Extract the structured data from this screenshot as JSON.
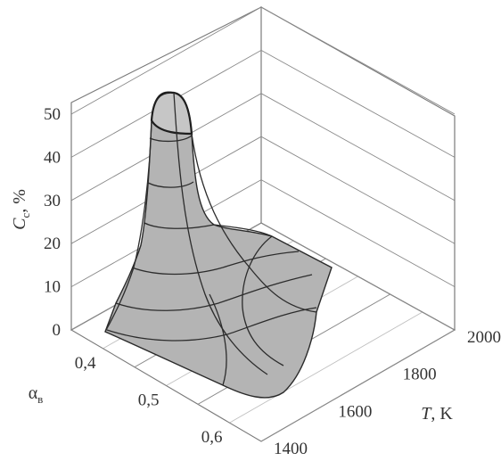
{
  "chart_data": {
    "type": "surface",
    "zlabel_main": "C",
    "zlabel_sub": "c",
    "zlabel_unit": ", %",
    "xlabel_main": "T",
    "xlabel_unit": ", K",
    "ylabel_main": "α",
    "ylabel_sub": "в",
    "z_ticks": [
      "0",
      "10",
      "20",
      "30",
      "40",
      "50"
    ],
    "z_tick_values": [
      0,
      10,
      20,
      30,
      40,
      50
    ],
    "x_ticks": [
      "1400",
      "1600",
      "1800",
      "2000"
    ],
    "x_tick_values": [
      1400,
      1600,
      1800,
      2000
    ],
    "y_ticks": [
      "0,4",
      "0,5",
      "0,6"
    ],
    "y_tick_values": [
      0.4,
      0.5,
      0.6
    ],
    "xlim": [
      1400,
      2000
    ],
    "ylim": [
      0.35,
      0.65
    ],
    "zlim": [
      0,
      50
    ],
    "grid": true,
    "surface_peak": {
      "T": 1400,
      "alpha": 0.4,
      "C": 50
    },
    "surface_low_T_edge": [
      {
        "alpha": 0.4,
        "C": 50
      },
      {
        "alpha": 0.45,
        "C": 20
      },
      {
        "alpha": 0.5,
        "C": 8
      },
      {
        "alpha": 0.55,
        "C": 4
      },
      {
        "alpha": 0.6,
        "C": 3
      }
    ]
  }
}
